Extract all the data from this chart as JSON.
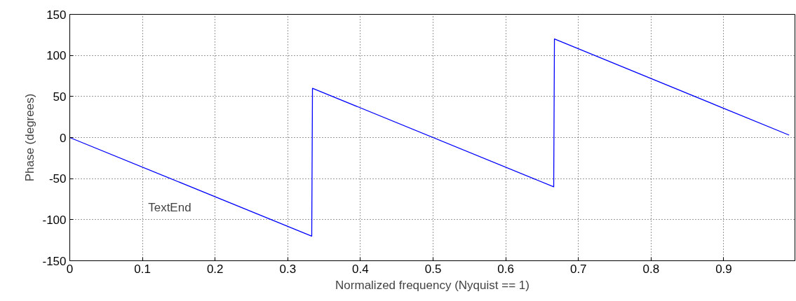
{
  "chart_data": {
    "type": "line",
    "xlabel": "Normalized frequency (Nyquist == 1)",
    "ylabel": "Phase (degrees)",
    "x": [
      0,
      0.333,
      0.334,
      0.666,
      0.667,
      0.99
    ],
    "series": [
      {
        "color": "#0000ff",
        "values": [
          0,
          -120,
          60,
          -60,
          120,
          3
        ]
      }
    ],
    "xlim": [
      0,
      0.998
    ],
    "xticks": [
      0,
      0.1,
      0.2,
      0.3,
      0.4,
      0.5,
      0.6,
      0.7,
      0.8,
      0.9
    ],
    "ylim": [
      -150,
      150
    ],
    "yticks": [
      -150,
      -100,
      -50,
      0,
      50,
      100,
      150
    ],
    "grid": true,
    "line_style": "solid",
    "marker": "none",
    "annotations": [
      "TextEnd"
    ]
  }
}
